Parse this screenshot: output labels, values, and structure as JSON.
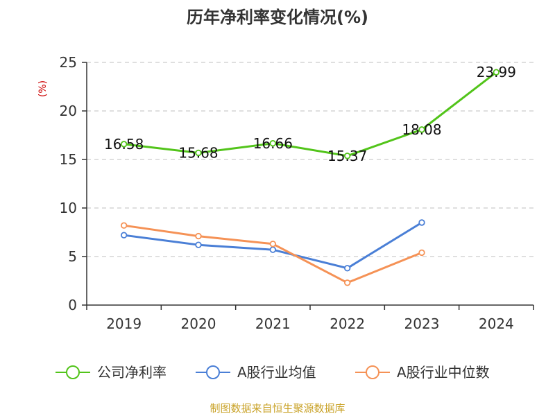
{
  "chart_data": {
    "type": "line",
    "title": "历年净利率变化情况(%)",
    "ylabel": "(%)",
    "categories": [
      "2019",
      "2020",
      "2021",
      "2022",
      "2023",
      "2024"
    ],
    "ylim": [
      0,
      25
    ],
    "yticks": [
      "0",
      "5",
      "10",
      "15",
      "20",
      "25"
    ],
    "grid": true,
    "legend_placement": "bottom",
    "series": [
      {
        "name": "公司净利率",
        "color": "#52c41a",
        "values": [
          16.58,
          15.68,
          16.66,
          15.37,
          18.08,
          23.99
        ],
        "labels": [
          "16.58",
          "15.68",
          "16.66",
          "15.37",
          "18.08",
          "23.99"
        ]
      },
      {
        "name": "A股行业均值",
        "color": "#4a7fd6",
        "values": [
          7.2,
          6.2,
          5.7,
          3.8,
          8.5,
          null
        ]
      },
      {
        "name": "A股行业中位数",
        "color": "#f59256",
        "values": [
          8.2,
          7.1,
          6.3,
          2.3,
          5.4,
          null
        ]
      }
    ],
    "source": "制图数据来自恒生聚源数据库"
  }
}
